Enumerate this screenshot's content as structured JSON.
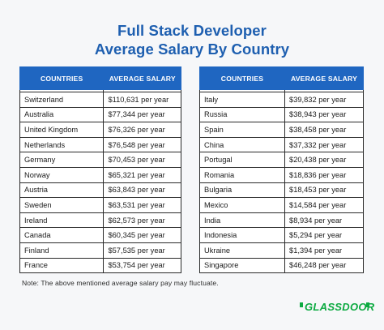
{
  "title_line1": "Full Stack Developer",
  "title_line2": "Average Salary By Country",
  "note": "Note: The above mentioned average salary pay may fluctuate.",
  "logo_text": "GLASSDOOR",
  "colors": {
    "accent": "#1f66c1",
    "title": "#1e5fb0",
    "brand": "#0caa41"
  },
  "chart_data": {
    "type": "table",
    "tables": [
      {
        "headers": [
          "COUNTRIES",
          "AVERAGE SALARY"
        ],
        "rows": [
          [
            "Switzerland",
            "$110,631 per year"
          ],
          [
            "Australia",
            "$77,344 per year"
          ],
          [
            "United Kingdom",
            "$76,326 per year"
          ],
          [
            "Netherlands",
            "$76,548 per year"
          ],
          [
            "Germany",
            "$70,453 per year"
          ],
          [
            "Norway",
            "$65,321 per year"
          ],
          [
            "Austria",
            "$63,843 per year"
          ],
          [
            "Sweden",
            "$63,531 per year"
          ],
          [
            "Ireland",
            "$62,573 per year"
          ],
          [
            "Canada",
            "$60,345 per year"
          ],
          [
            "Finland",
            "$57,535 per year"
          ],
          [
            "France",
            "$53,754 per year"
          ]
        ]
      },
      {
        "headers": [
          "COUNTRIES",
          "AVERAGE SALARY"
        ],
        "rows": [
          [
            "Italy",
            "$39,832 per year"
          ],
          [
            "Russia",
            "$38,943 per year"
          ],
          [
            "Spain",
            "$38,458 per year"
          ],
          [
            "China",
            "$37,332 per year"
          ],
          [
            "Portugal",
            "$20,438 per year"
          ],
          [
            "Romania",
            "$18,836 per year"
          ],
          [
            "Bulgaria",
            "$18,453 per year"
          ],
          [
            "Mexico",
            "$14,584 per year"
          ],
          [
            "India",
            "$8,934 per year"
          ],
          [
            "Indonesia",
            "$5,294 per year"
          ],
          [
            "Ukraine",
            "$1,394 per year"
          ],
          [
            "Singapore",
            "$46,248 per year"
          ]
        ]
      }
    ]
  }
}
